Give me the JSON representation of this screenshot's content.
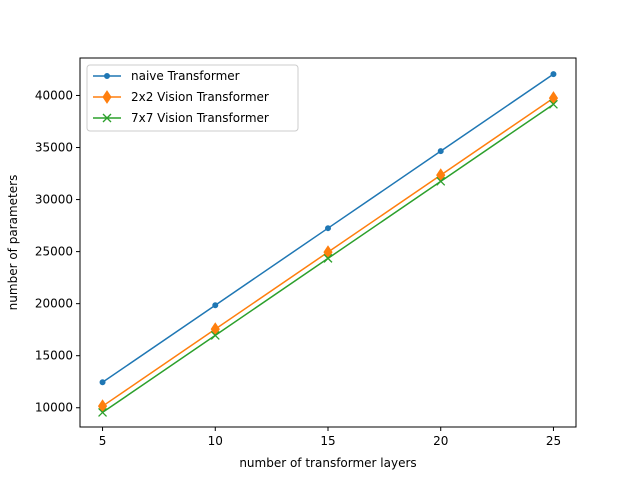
{
  "chart_data": {
    "type": "line",
    "title": "",
    "xlabel": "number of transformer layers",
    "ylabel": "number of parameters",
    "x": [
      5,
      10,
      15,
      20,
      25
    ],
    "xlim": [
      4,
      26
    ],
    "ylim": [
      8150,
      43600
    ],
    "xticks": [
      5,
      10,
      15,
      20,
      25
    ],
    "yticks": [
      10000,
      15000,
      20000,
      25000,
      30000,
      35000,
      40000
    ],
    "grid": false,
    "legend_position": "upper-left",
    "series": [
      {
        "name": "naive Transformer",
        "color": "#1f77b4",
        "marker": "point",
        "values": [
          12450,
          19850,
          27250,
          34650,
          42050
        ]
      },
      {
        "name": "2x2 Vision Transformer",
        "color": "#ff7f0e",
        "marker": "thin-diamond",
        "values": [
          10150,
          17550,
          24950,
          32350,
          39750
        ]
      },
      {
        "name": "7x7 Vision Transformer",
        "color": "#2ca02c",
        "marker": "x",
        "values": [
          9550,
          16950,
          24350,
          31750,
          39150
        ]
      }
    ]
  }
}
